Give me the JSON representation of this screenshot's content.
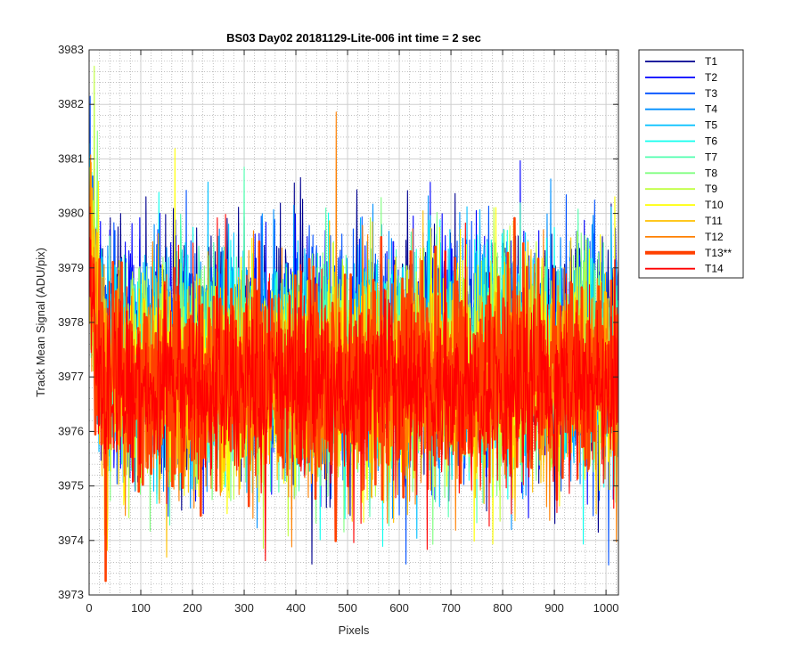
{
  "chart_data": {
    "type": "line",
    "title": "BS03 Day02 20181129-Lite-006 int time = 2 sec",
    "xlabel": "Pixels",
    "ylabel": "Track Mean Signal (ADU/pix)",
    "xlim": [
      0,
      1024
    ],
    "ylim": [
      3973,
      3983
    ],
    "xticks": [
      "0",
      "100",
      "200",
      "300",
      "400",
      "500",
      "600",
      "700",
      "800",
      "900",
      "1000"
    ],
    "yticks": [
      "3973",
      "3974",
      "3975",
      "3976",
      "3977",
      "3978",
      "3979",
      "3980",
      "3981",
      "3982",
      "3983"
    ],
    "grid": true,
    "minor_grid": true,
    "legend_position": "outside-top-right",
    "n_points": 1024,
    "series": [
      {
        "name": "T1",
        "color": "#00008f",
        "mean": 3977.5,
        "spread": 2.3,
        "seed": 11
      },
      {
        "name": "T2",
        "color": "#0000ff",
        "mean": 3977.4,
        "spread": 2.2,
        "seed": 23
      },
      {
        "name": "T3",
        "color": "#0050ff",
        "mean": 3977.4,
        "spread": 2.2,
        "seed": 37
      },
      {
        "name": "T4",
        "color": "#0090ff",
        "mean": 3977.3,
        "spread": 2.1,
        "seed": 41
      },
      {
        "name": "T5",
        "color": "#00c0ff",
        "mean": 3977.3,
        "spread": 2.1,
        "seed": 53
      },
      {
        "name": "T6",
        "color": "#10ffef",
        "mean": 3977.3,
        "spread": 2.0,
        "seed": 61
      },
      {
        "name": "T7",
        "color": "#50ffaf",
        "mean": 3977.2,
        "spread": 2.0,
        "seed": 73
      },
      {
        "name": "T8",
        "color": "#80ff80",
        "mean": 3977.2,
        "spread": 2.0,
        "seed": 83
      },
      {
        "name": "T9",
        "color": "#bfff40",
        "mean": 3977.1,
        "spread": 2.0,
        "seed": 97
      },
      {
        "name": "T10",
        "color": "#ffff00",
        "mean": 3977.0,
        "spread": 2.0,
        "seed": 101
      },
      {
        "name": "T11",
        "color": "#ffc000",
        "mean": 3977.0,
        "spread": 2.0,
        "seed": 113
      },
      {
        "name": "T12",
        "color": "#ff8000",
        "mean": 3976.9,
        "spread": 2.0,
        "seed": 127
      },
      {
        "name": "T13**",
        "color": "#ff4000",
        "mean": 3977.0,
        "spread": 1.9,
        "seed": 131,
        "thick": true
      },
      {
        "name": "T14",
        "color": "#ff0000",
        "mean": 3976.8,
        "spread": 1.9,
        "seed": 149
      }
    ]
  }
}
